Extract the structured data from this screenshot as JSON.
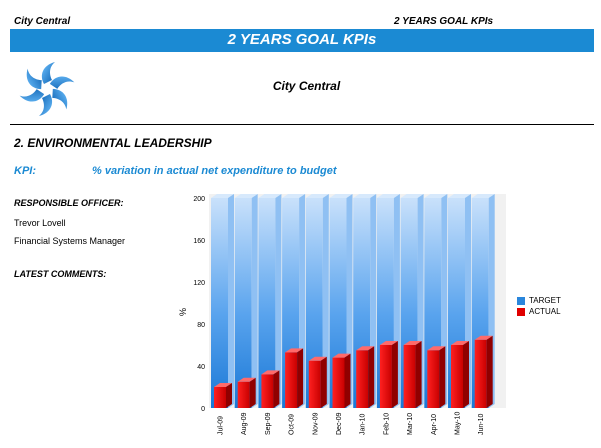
{
  "header": {
    "left": "City Central",
    "right": "2 YEARS GOAL KPIs"
  },
  "banner": {
    "title": "2 YEARS GOAL KPIs"
  },
  "org_name": "City Central",
  "section_title": "2. ENVIRONMENTAL LEADERSHIP",
  "kpi": {
    "label": "KPI:",
    "text": "% variation in actual net expenditure to budget"
  },
  "responsible": {
    "label": "RESPONSIBLE OFFICER:",
    "name": "Trevor Lovell",
    "role": "Financial Systems Manager"
  },
  "comments": {
    "label": "LATEST COMMENTS:"
  },
  "colors": {
    "banner": "#1b8ad3",
    "target": "#2a86dc",
    "actual": "#e00000"
  },
  "chart_data": {
    "type": "bar",
    "categories": [
      "Jul-09",
      "Aug-09",
      "Sep-09",
      "Oct-09",
      "Nov-09",
      "Dec-09",
      "Jan-10",
      "Feb-10",
      "Mar-10",
      "Apr-10",
      "May-10",
      "Jun-10"
    ],
    "series": [
      {
        "name": "TARGET",
        "values": [
          200,
          200,
          200,
          200,
          200,
          200,
          200,
          200,
          200,
          200,
          200,
          200
        ]
      },
      {
        "name": "ACTUAL",
        "values": [
          20,
          25,
          32,
          53,
          45,
          48,
          55,
          60,
          60,
          55,
          60,
          65
        ]
      }
    ],
    "ylabel": "%",
    "ylim": [
      0,
      200
    ],
    "yticks": [
      0,
      40,
      80,
      120,
      160,
      200
    ],
    "legend_position": "right",
    "three_d": true
  }
}
